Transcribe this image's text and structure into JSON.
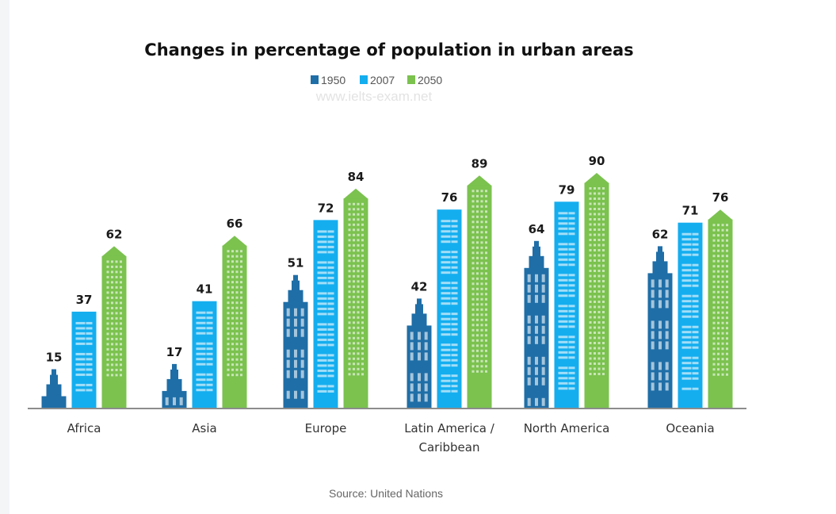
{
  "chart_data": {
    "type": "bar",
    "title": "Changes in percentage of population in urban areas",
    "watermark": "www.ielts-exam.net",
    "source": "Source: United Nations",
    "categories": [
      "Africa",
      "Asia",
      "Europe",
      "Latin America / Caribbean",
      "North America",
      "Oceania"
    ],
    "category_lines": [
      [
        "Africa"
      ],
      [
        "Asia"
      ],
      [
        "Europe"
      ],
      [
        "Latin America /",
        "Caribbean"
      ],
      [
        "North America"
      ],
      [
        "Oceania"
      ]
    ],
    "series": [
      {
        "name": "1950",
        "color": "#1f6ea7",
        "values": [
          15,
          17,
          51,
          42,
          64,
          62
        ]
      },
      {
        "name": "2007",
        "color": "#14aeef",
        "values": [
          37,
          41,
          72,
          76,
          79,
          71
        ]
      },
      {
        "name": "2050",
        "color": "#7bc24f",
        "values": [
          62,
          66,
          84,
          89,
          90,
          76
        ]
      }
    ],
    "ylim": [
      0,
      100
    ],
    "legend_position": "top-center",
    "grid": false,
    "data_labels": true
  }
}
